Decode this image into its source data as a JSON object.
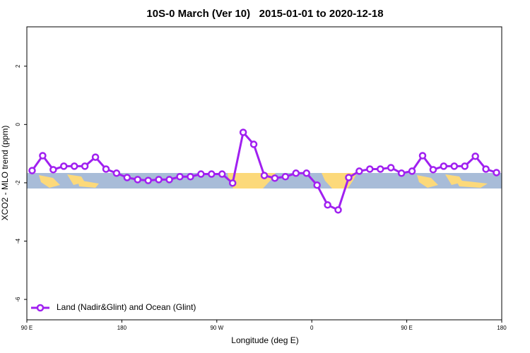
{
  "chart_data": {
    "type": "line",
    "title": "10S-0 March (Ver 10)   2015-01-01 to 2020-12-18",
    "x_label": "Longitude (deg E)",
    "y_label": "XCO2 - MLO trend (ppm)",
    "x": [
      95,
      105,
      115,
      125,
      135,
      145,
      155,
      165,
      175,
      185,
      195,
      205,
      215,
      225,
      235,
      245,
      255,
      265,
      275,
      285,
      295,
      305,
      315,
      325,
      335,
      345,
      355,
      365,
      375,
      385,
      395,
      405,
      415,
      425,
      435,
      445,
      455,
      465,
      475,
      485,
      495,
      505,
      515,
      525,
      535
    ],
    "series": [
      {
        "name": "Land (Nadir&Glint) and Ocean (Glint)",
        "color": "#a020f0",
        "values": [
          -1.58,
          -1.07,
          -1.55,
          -1.43,
          -1.43,
          -1.43,
          -1.12,
          -1.53,
          -1.67,
          -1.82,
          -1.89,
          -1.92,
          -1.89,
          -1.89,
          -1.79,
          -1.79,
          -1.7,
          -1.7,
          -1.7,
          -2.01,
          -0.27,
          -0.68,
          -1.75,
          -1.84,
          -1.79,
          -1.67,
          -1.67,
          -2.08,
          -2.76,
          -2.93,
          -1.82,
          -1.6,
          -1.53,
          -1.53,
          -1.48,
          -1.67,
          -1.6,
          -1.07,
          -1.55,
          -1.43,
          -1.43,
          -1.43,
          -1.09,
          -1.53,
          -1.65
        ]
      }
    ],
    "xlim": [
      90,
      540
    ],
    "xticks": [
      {
        "value": 90,
        "label": "90 E"
      },
      180,
      {
        "value": 270,
        "label": "90 W"
      },
      {
        "value": 360,
        "label": "0"
      },
      {
        "value": 450,
        "label": "90 E"
      },
      {
        "value": 540,
        "label": "180"
      }
    ],
    "ylim": [
      -6.7,
      3.35
    ],
    "yticks": [
      -6,
      -4,
      -2,
      0,
      2
    ],
    "legend": "bottomleft"
  }
}
